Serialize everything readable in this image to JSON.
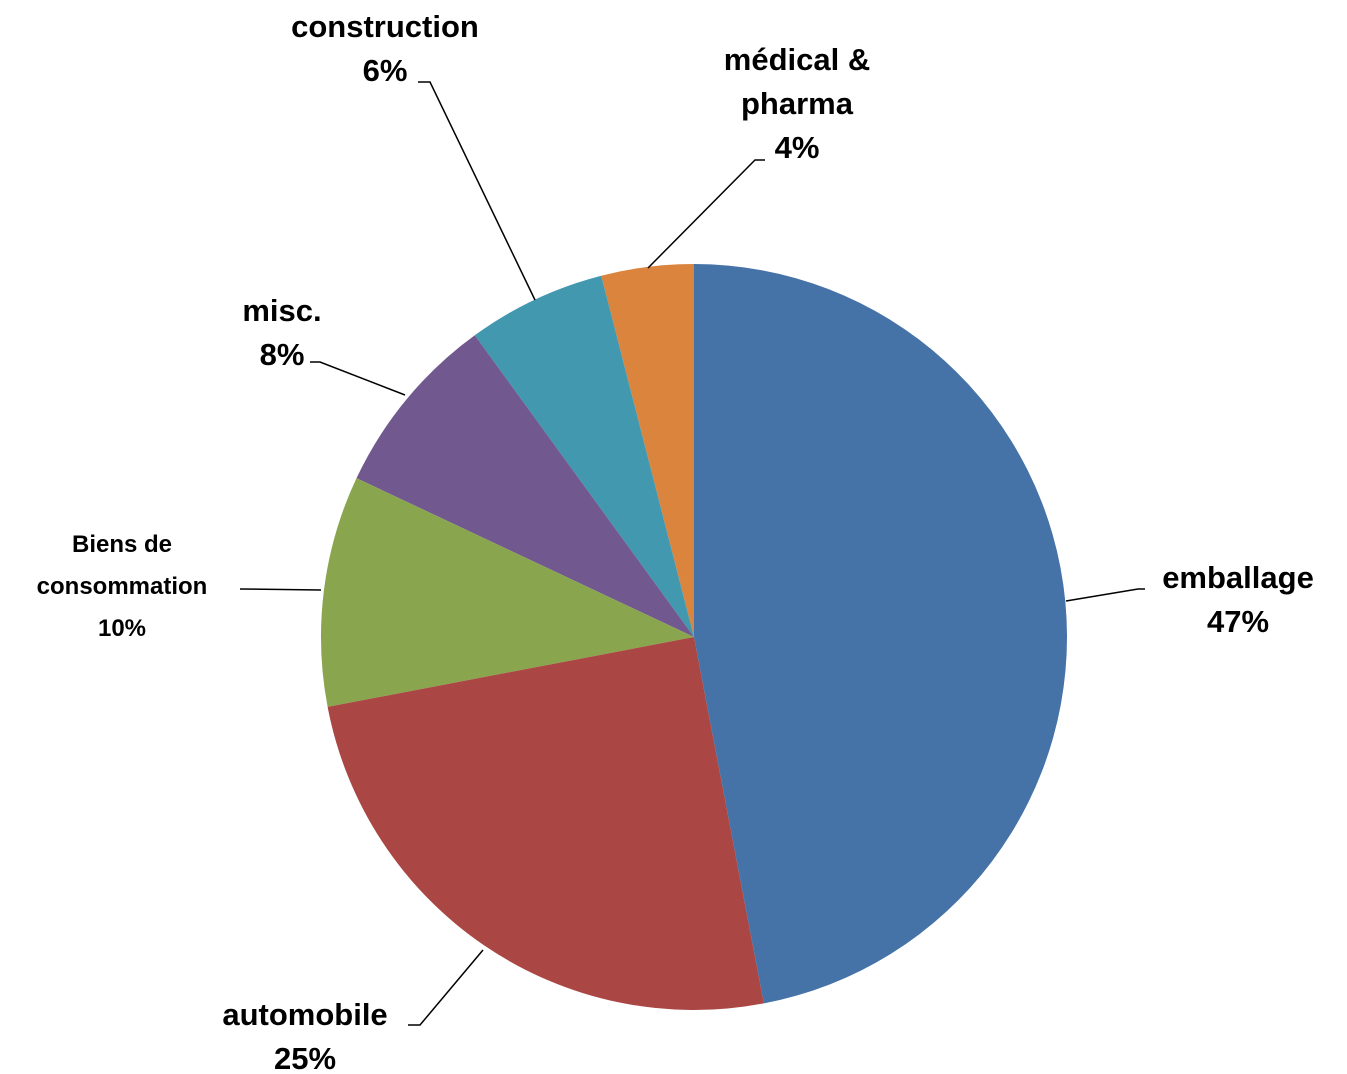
{
  "chart_data": {
    "type": "pie",
    "categories": [
      "emballage",
      "automobile",
      "Biens de consommation",
      "misc.",
      "construction",
      "médical & pharma"
    ],
    "values": [
      47,
      25,
      10,
      8,
      6,
      4
    ],
    "value_labels": [
      "47%",
      "25%",
      "10%",
      "8%",
      "6%",
      "4%"
    ],
    "colors": [
      "#4572a7",
      "#aa4643",
      "#89a54e",
      "#71588f",
      "#4198af",
      "#db843d"
    ]
  }
}
